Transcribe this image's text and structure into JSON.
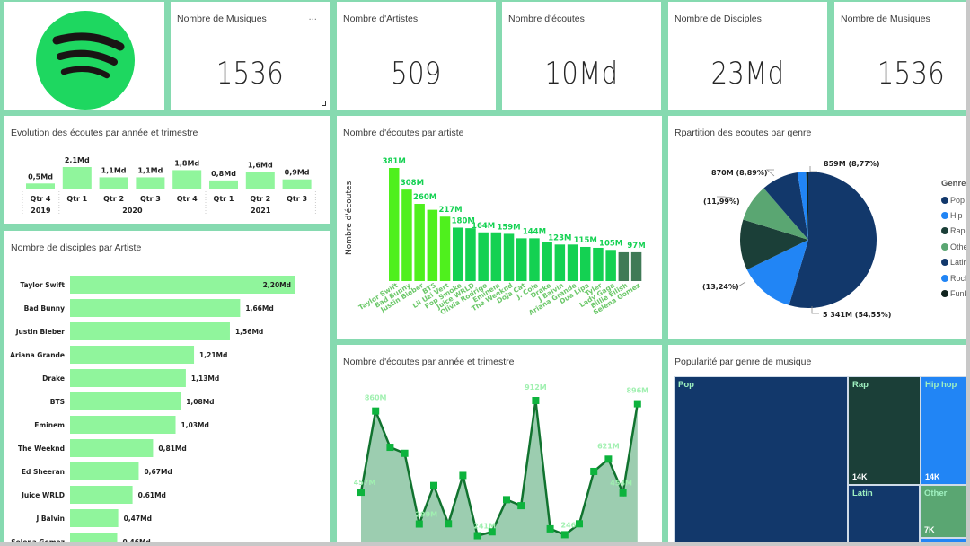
{
  "logo": {
    "icon": "spotify-logo",
    "color": "#1ed760"
  },
  "kpis": [
    {
      "title": "Nombre de Musiques",
      "value": "1536",
      "more": "..."
    },
    {
      "title": "Nombre d'Artistes",
      "value": "509"
    },
    {
      "title": "Nombre d'écoutes",
      "value": "10Md"
    },
    {
      "title": "Nombre de Disciples",
      "value": "23Md"
    },
    {
      "title": "Nombre de Musiques",
      "value": "1536"
    }
  ],
  "colors": {
    "background": "#86dab0",
    "bar_light_green": "#90f59c",
    "bright_green": "#4ff01d",
    "mid_green": "#14d152",
    "dark_green": "#3f7a56",
    "line": "#11732f",
    "area": "#9ccdb0",
    "marker": "#0db33d",
    "label_green": "#a0f0b0"
  },
  "chart_data": [
    {
      "id": "evolution",
      "type": "bar",
      "title": "Evolution des écoutes par année et trimestre",
      "categories": [
        "Qtr 4",
        "Qtr 1",
        "Qtr 2",
        "Qtr 3",
        "Qtr 4",
        "Qtr 1",
        "Qtr 2",
        "Qtr 3"
      ],
      "groups": [
        {
          "label": "2019",
          "span": 1
        },
        {
          "label": "2020",
          "span": 4
        },
        {
          "label": "2021",
          "span": 3
        }
      ],
      "values": [
        0.5,
        2.1,
        1.1,
        1.1,
        1.8,
        0.8,
        1.6,
        0.9
      ],
      "labels": [
        "0,5Md",
        "2,1Md",
        "1,1Md",
        "1,1Md",
        "1,8Md",
        "0,8Md",
        "1,6Md",
        "0,9Md"
      ],
      "unit": "Md"
    },
    {
      "id": "disciples",
      "type": "bar",
      "orientation": "horizontal",
      "title": "Nombre de disciples par Artiste",
      "categories": [
        "Taylor Swift",
        "Bad Bunny",
        "Justin Bieber",
        "Ariana Grande",
        "Drake",
        "BTS",
        "Eminem",
        "The Weeknd",
        "Ed Sheeran",
        "Juice WRLD",
        "J Balvin",
        "Selena Gomez"
      ],
      "values": [
        2.2,
        1.66,
        1.56,
        1.21,
        1.13,
        1.08,
        1.03,
        0.81,
        0.67,
        0.61,
        0.47,
        0.46
      ],
      "labels": [
        "2,20Md",
        "1,66Md",
        "1,56Md",
        "1,21Md",
        "1,13Md",
        "1,08Md",
        "1,03Md",
        "0,81Md",
        "0,67Md",
        "0,61Md",
        "0,47Md",
        "0,46Md"
      ],
      "unit": "Md"
    },
    {
      "id": "ecoutes-artiste",
      "type": "bar",
      "title": "Nombre d'écoutes par artiste",
      "ylabel": "Nombre d'écoutes",
      "categories": [
        "Taylor Swift",
        "Bad Bunny",
        "Justin Bieber",
        "BTS",
        "Lil Uzi Vert",
        "Pop Smoke",
        "Juice WRLD",
        "Olivia Rodrigo",
        "Eminem",
        "The Weeknd",
        "Doja Cat",
        "J. Cole",
        "Drake",
        "J Balvin",
        "Ariana Grande",
        "Dua Lipa",
        "Tyler",
        "Lady Gaga",
        "Billie Eilish",
        "Selena Gomez"
      ],
      "values": [
        381,
        308,
        260,
        240,
        217,
        180,
        178,
        164,
        164,
        159,
        144,
        144,
        133,
        123,
        123,
        115,
        112,
        105,
        97,
        97
      ],
      "labels": [
        "381M",
        "308M",
        "260M",
        "",
        "217M",
        "180M",
        "",
        "164M",
        "",
        "159M",
        "",
        "144M",
        "",
        "123M",
        "",
        "115M",
        "",
        "105M",
        "",
        "97M"
      ],
      "tiers": [
        "bright",
        "bright",
        "bright",
        "bright",
        "bright",
        "mid",
        "mid",
        "mid",
        "mid",
        "mid",
        "mid",
        "mid",
        "mid",
        "mid",
        "mid",
        "mid",
        "mid",
        "mid",
        "dark",
        "dark"
      ],
      "unit": "M"
    },
    {
      "id": "genre-pie",
      "type": "pie",
      "title": "Rpartition des ecoutes par genre",
      "legend_title": "Genre",
      "legend_position": "right",
      "slices": [
        {
          "name": "Pop",
          "value": 5341,
          "percent": 54.55,
          "color": "#12386b",
          "label": "5 341M (54,55%)"
        },
        {
          "name": "Hip hop",
          "value": 1296,
          "percent": 13.24,
          "color": "#2185f5",
          "label": "(13,24%)"
        },
        {
          "name": "Rap",
          "value": 1174,
          "percent": 11.99,
          "color": "#1b3f38",
          "label": "(11,99%)"
        },
        {
          "name": "Other",
          "value": 870,
          "percent": 8.89,
          "color": "#5aa672",
          "label": "870M (8,89%)"
        },
        {
          "name": "Latin",
          "value": 859,
          "percent": 8.77,
          "color": "#12386b",
          "label": "859M (8,77%)"
        },
        {
          "name": "Rock",
          "value": 200,
          "percent": 2.0,
          "color": "#2185f5",
          "label": ""
        },
        {
          "name": "Funk",
          "value": 50,
          "percent": 0.5,
          "color": "#10241e",
          "label": ""
        }
      ],
      "legend_items": [
        "Pop",
        "Hip",
        "Rap",
        "Othe",
        "Latir",
        "Rock",
        "Funk"
      ]
    },
    {
      "id": "ecoutes-trimestre",
      "type": "area",
      "title": "Nombre d'écoutes par année et trimestre",
      "values": [
        457,
        860,
        680,
        650,
        299,
        490,
        300,
        540,
        241,
        260,
        420,
        390,
        912,
        275,
        246,
        300,
        560,
        621,
        454,
        896
      ],
      "labels": [
        "457M",
        "860M",
        "",
        "",
        "299M",
        "",
        "",
        "",
        "241M",
        "",
        "",
        "",
        "912M",
        "",
        "246M",
        "",
        "",
        "621M",
        "454M",
        "896M"
      ],
      "unit": "M"
    },
    {
      "id": "genre-treemap",
      "type": "treemap",
      "title": "Popularité par genre de musique",
      "cells": [
        {
          "name": "Pop",
          "value": "",
          "color": "#12386b"
        },
        {
          "name": "Rap",
          "value": "14K",
          "color": "#1b3f38"
        },
        {
          "name": "Hip hop",
          "value": "14K",
          "color": "#2185f5"
        },
        {
          "name": "Latin",
          "value": "",
          "color": "#12386b"
        },
        {
          "name": "Other",
          "value": "7K",
          "color": "#5aa672"
        },
        {
          "name": "",
          "value": "",
          "color": "#2185f5"
        }
      ]
    }
  ]
}
